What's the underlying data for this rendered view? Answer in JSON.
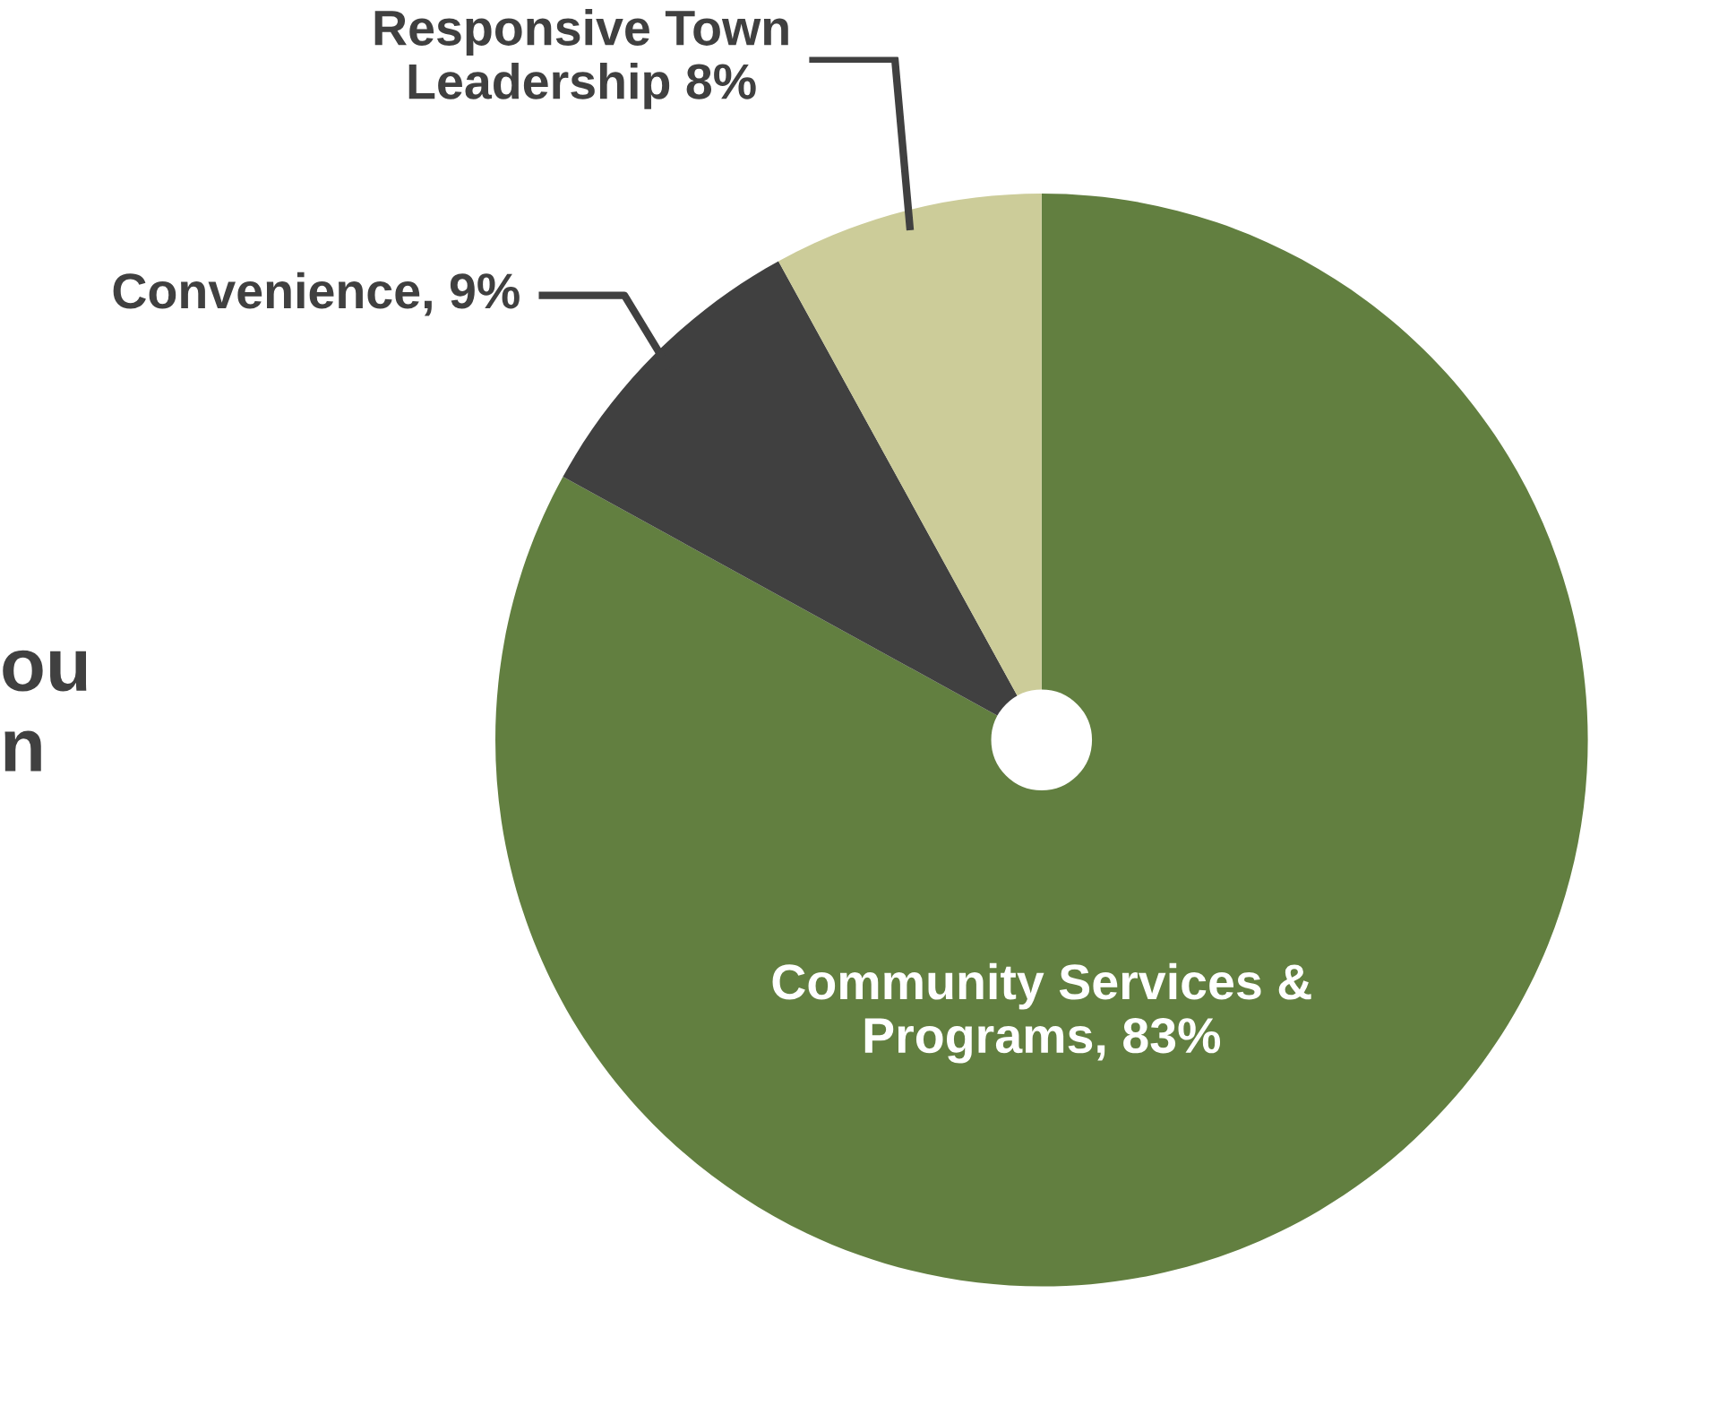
{
  "chart_data": {
    "type": "pie",
    "categories": [
      "Community Services & Programs",
      "Convenience",
      "Responsive Town Leadership"
    ],
    "values": [
      83,
      9,
      8
    ],
    "colors": [
      "#627f40",
      "#404040",
      "#cccc99"
    ],
    "value_labels": [
      "83%",
      "9%",
      "8%"
    ],
    "annotations": [
      "ou\nn"
    ],
    "legend": false
  }
}
